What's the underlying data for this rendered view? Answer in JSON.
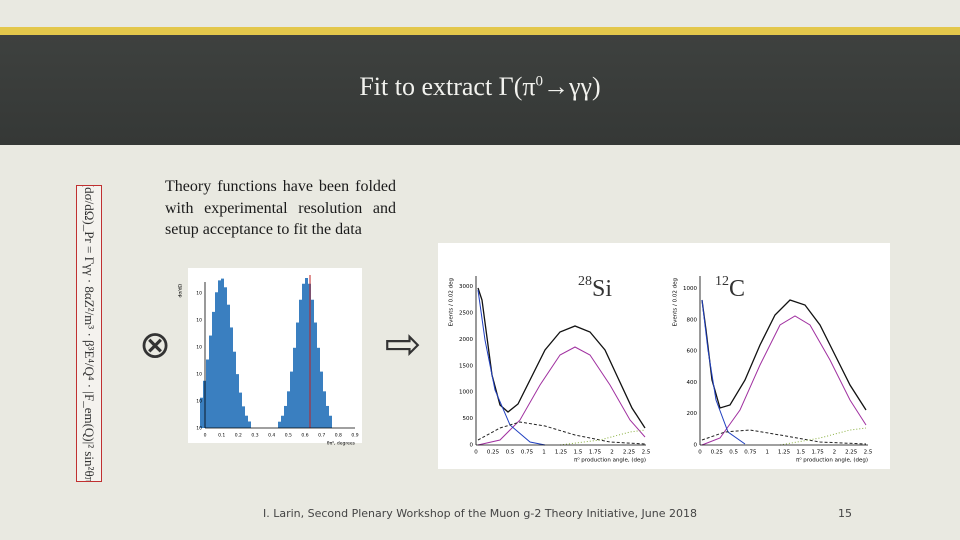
{
  "header": {
    "title_parts": [
      "Fit to extract Γ(π",
      "0",
      "→γγ)"
    ]
  },
  "body": {
    "text": "Theory functions have been folded with experimental resolution and setup acceptance to fit the data"
  },
  "formula": "(dσ/dΩ)_Pr = Γγγ · 8αZ²/m³ · β³E⁴/Q⁴ · |F_em(Q)|² sin²θπ",
  "symbols": {
    "convolve": "⊗",
    "arrow": "⇨"
  },
  "figures": {
    "histogram": {
      "y_label": "dσ/dΩ",
      "x_label": "θπ⁰, degrees",
      "yticks": [
        "10",
        "10",
        "10",
        "10",
        "10",
        "10"
      ],
      "xticks": [
        "0",
        "0.1",
        "0.2",
        "0.3",
        "0.4",
        "0.5",
        "0.6",
        "0.7",
        "0.8",
        "0.9"
      ]
    },
    "si": {
      "mass": "28",
      "element": "Si",
      "y_label": "Events / 0.02 deg",
      "x_label": "π⁰ production angle, (deg)",
      "yticks": [
        "0",
        "500",
        "1000",
        "1500",
        "2000",
        "2500",
        "3000"
      ],
      "xticks": [
        "0",
        "0.25",
        "0.5",
        "0.75",
        "1",
        "1.25",
        "1.5",
        "1.75",
        "2",
        "2.25",
        "2.5"
      ]
    },
    "c": {
      "mass": "12",
      "element": "C",
      "y_label": "Events / 0.02 deg",
      "x_label": "π⁰ production angle, (deg)",
      "yticks": [
        "0",
        "200",
        "400",
        "600",
        "800",
        "1000"
      ],
      "xticks": [
        "0",
        "0.25",
        "0.5",
        "0.75",
        "1",
        "1.25",
        "1.5",
        "1.75",
        "2",
        "2.25",
        "2.5"
      ]
    }
  },
  "footer": {
    "text": "I. Larin, Second Plenary Workshop of the Muon g-2 Theory Initiative, June 2018",
    "page": "15"
  }
}
